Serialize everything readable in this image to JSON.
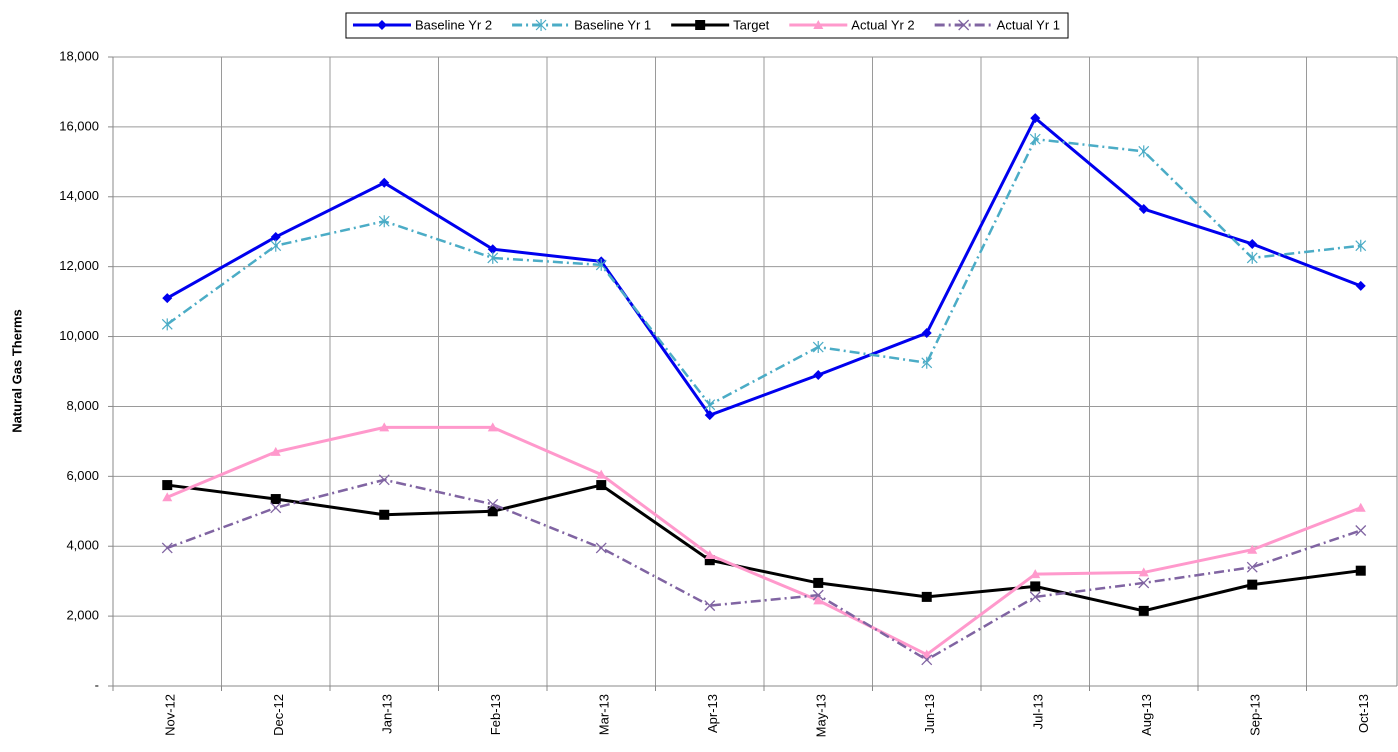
{
  "chart_data": {
    "type": "line",
    "y_label": "Natural Gas Therms",
    "categories": [
      "Nov-12",
      "Dec-12",
      "Jan-13",
      "Feb-13",
      "Mar-13",
      "Apr-13",
      "May-13",
      "Jun-13",
      "Jul-13",
      "Aug-13",
      "Sep-13",
      "Oct-13"
    ],
    "series": [
      {
        "name": "Baseline Yr 2",
        "color": "#0000ee",
        "marker": "diamond",
        "dash": false,
        "values": [
          11100,
          12850,
          14400,
          12500,
          12150,
          7750,
          8900,
          10100,
          16250,
          13650,
          12650,
          11450
        ]
      },
      {
        "name": "Baseline Yr 1",
        "color": "#4bacc6",
        "marker": "asterisk",
        "dash": true,
        "values": [
          10350,
          12600,
          13300,
          12250,
          12050,
          8050,
          9700,
          9250,
          15650,
          15300,
          12250,
          12600
        ]
      },
      {
        "name": "Target",
        "color": "#000000",
        "marker": "square",
        "dash": false,
        "values": [
          5750,
          5350,
          4900,
          5000,
          5750,
          3600,
          2950,
          2550,
          2850,
          2150,
          2900,
          3300
        ]
      },
      {
        "name": "Actual Yr 2",
        "color": "#ff99cc",
        "marker": "triangle",
        "dash": false,
        "values": [
          5400,
          6700,
          7400,
          7400,
          6050,
          3750,
          2450,
          900,
          3200,
          3250,
          3900,
          5100
        ]
      },
      {
        "name": "Actual Yr 1",
        "color": "#8064a2",
        "marker": "x",
        "dash": true,
        "values": [
          3950,
          5100,
          5900,
          5200,
          3950,
          2300,
          2600,
          750,
          2550,
          2950,
          3400,
          4450
        ]
      }
    ],
    "ylim": [
      0,
      18000
    ],
    "yticks": [
      {
        "value": 0,
        "label": "-"
      },
      {
        "value": 2000,
        "label": "2,000"
      },
      {
        "value": 4000,
        "label": "4,000"
      },
      {
        "value": 6000,
        "label": "6,000"
      },
      {
        "value": 8000,
        "label": "8,000"
      },
      {
        "value": 10000,
        "label": "10,000"
      },
      {
        "value": 12000,
        "label": "12,000"
      },
      {
        "value": 14000,
        "label": "14,000"
      },
      {
        "value": 16000,
        "label": "16,000"
      },
      {
        "value": 18000,
        "label": "18,000"
      }
    ],
    "grid": true,
    "legend": "top"
  }
}
